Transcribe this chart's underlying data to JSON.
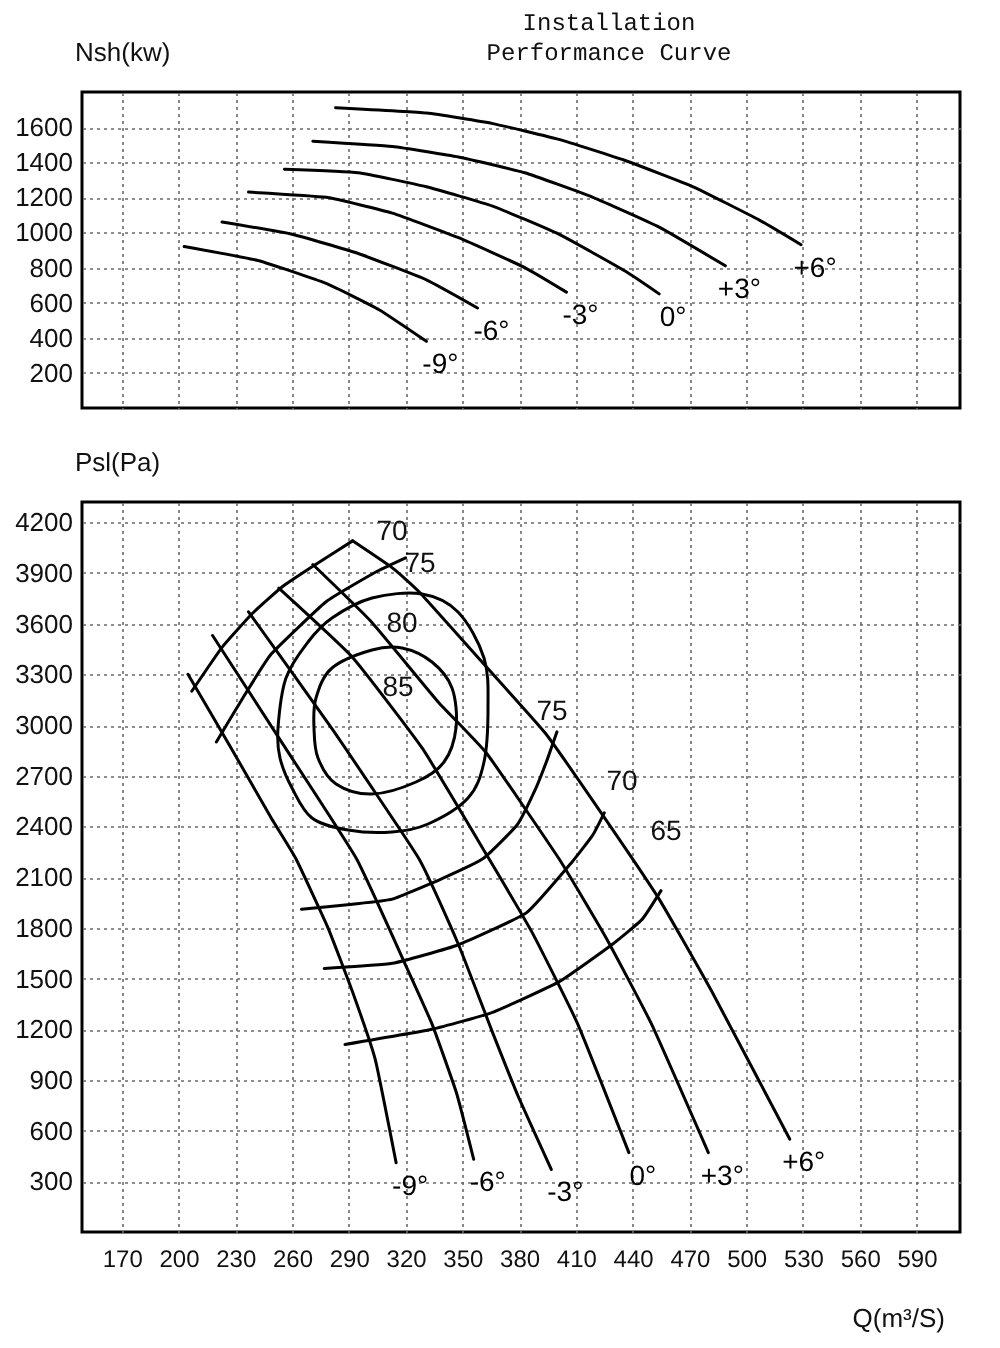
{
  "chart_data": [
    {
      "type": "line",
      "title": "Installation\nPerformance Curve",
      "ylabel": "Nsh(kw)",
      "xlim": [
        149,
        613
      ],
      "xticks": [
        170,
        200,
        230,
        260,
        290,
        320,
        350,
        380,
        410,
        440,
        470,
        500,
        530,
        560,
        590
      ],
      "ylim": [
        0,
        1800
      ],
      "yticks": [
        200,
        400,
        600,
        800,
        1000,
        1200,
        1400,
        1600
      ],
      "grid": true,
      "tick_labels": "y",
      "series": [
        {
          "name": "-9°",
          "color": "#000000",
          "x": [
            203,
            242,
            278,
            306,
            331
          ],
          "values": [
            920,
            840,
            710,
            560,
            380
          ]
        },
        {
          "name": "-6°",
          "color": "#000000",
          "x": [
            223,
            260,
            295,
            331,
            358
          ],
          "values": [
            1060,
            990,
            880,
            730,
            570
          ]
        },
        {
          "name": "-3°",
          "color": "#000000",
          "x": [
            237,
            278,
            313,
            348,
            383,
            405
          ],
          "values": [
            1230,
            1200,
            1110,
            970,
            800,
            660
          ]
        },
        {
          "name": "0°",
          "color": "#000000",
          "x": [
            256,
            295,
            331,
            366,
            401,
            436,
            454
          ],
          "values": [
            1360,
            1340,
            1260,
            1150,
            990,
            780,
            650
          ]
        },
        {
          "name": "+3°",
          "color": "#000000",
          "x": [
            271,
            313,
            348,
            383,
            419,
            454,
            489
          ],
          "values": [
            1520,
            1490,
            1430,
            1340,
            1200,
            1030,
            810
          ]
        },
        {
          "name": "+6°",
          "color": "#000000",
          "x": [
            283,
            331,
            366,
            401,
            436,
            472,
            507,
            529
          ],
          "values": [
            1710,
            1680,
            1620,
            1530,
            1410,
            1260,
            1070,
            930
          ]
        }
      ]
    },
    {
      "type": "line",
      "ylabel": "Psl(Pa)",
      "xlabel": "Q(m³/S)",
      "xlim": [
        149,
        613
      ],
      "xticks": [
        170,
        200,
        230,
        260,
        290,
        320,
        350,
        380,
        410,
        440,
        470,
        500,
        530,
        560,
        590
      ],
      "ylim": [
        0,
        4320
      ],
      "yticks": [
        300,
        600,
        900,
        1200,
        1500,
        1800,
        2100,
        2400,
        2700,
        3000,
        3300,
        3600,
        3900,
        4200
      ],
      "grid": true,
      "series": [
        {
          "name": "-9°",
          "color": "#000000",
          "x": [
            205,
            228,
            249,
            262,
            279,
            292,
            304,
            315
          ],
          "values": [
            3300,
            2860,
            2450,
            2210,
            1800,
            1420,
            1020,
            410
          ]
        },
        {
          "name": "-6°",
          "color": "#000000",
          "x": [
            218,
            255,
            294,
            320,
            334,
            347,
            356
          ],
          "values": [
            3530,
            2890,
            2210,
            1580,
            1230,
            820,
            430
          ]
        },
        {
          "name": "-3°",
          "color": "#000000",
          "x": [
            237,
            281,
            327,
            348,
            366,
            380,
            397
          ],
          "values": [
            3670,
            2980,
            2210,
            1700,
            1180,
            790,
            370
          ]
        },
        {
          "name": "0°",
          "color": "#000000",
          "x": [
            253,
            292,
            329,
            364,
            387,
            411,
            438
          ],
          "values": [
            3810,
            3400,
            2860,
            2210,
            1770,
            1230,
            470
          ]
        },
        {
          "name": "+3°",
          "color": "#000000",
          "x": [
            271,
            302,
            337,
            363,
            401,
            426,
            450,
            480
          ],
          "values": [
            3950,
            3610,
            3140,
            2830,
            2210,
            1740,
            1230,
            470
          ]
        },
        {
          "name": "+6°",
          "color": "#000000",
          "x": [
            292,
            313,
            327,
            363,
            394,
            424,
            454,
            482,
            523
          ],
          "values": [
            4090,
            3930,
            3790,
            3340,
            2950,
            2470,
            1970,
            1420,
            550
          ]
        },
        {
          "color": "#000000",
          "x": [
            207,
            223,
            239,
            255,
            271,
            292
          ],
          "values": [
            3200,
            3460,
            3660,
            3820,
            3940,
            4090
          ]
        },
        {
          "color": "#000000",
          "x": [
            220,
            234,
            249,
            278,
            305,
            320
          ],
          "values": [
            2900,
            3160,
            3420,
            3730,
            3910,
            3990
          ]
        },
        {
          "color": "#000000",
          "x": [
            265,
            292,
            313,
            339,
            361,
            379,
            389,
            395,
            400
          ],
          "values": [
            1910,
            1940,
            1970,
            2090,
            2210,
            2410,
            2630,
            2800,
            2960
          ]
        },
        {
          "color": "#000000",
          "x": [
            277,
            313,
            348,
            384,
            408,
            419,
            425
          ],
          "values": [
            1560,
            1590,
            1700,
            1890,
            2190,
            2350,
            2480
          ]
        },
        {
          "color": "#000000",
          "x": [
            288,
            334,
            366,
            401,
            429,
            445,
            455
          ],
          "values": [
            1110,
            1200,
            1300,
            1480,
            1700,
            1850,
            2020
          ]
        }
      ],
      "annotations": [
        "70",
        "75",
        "80",
        "85",
        "75",
        "70",
        "65"
      ]
    }
  ]
}
